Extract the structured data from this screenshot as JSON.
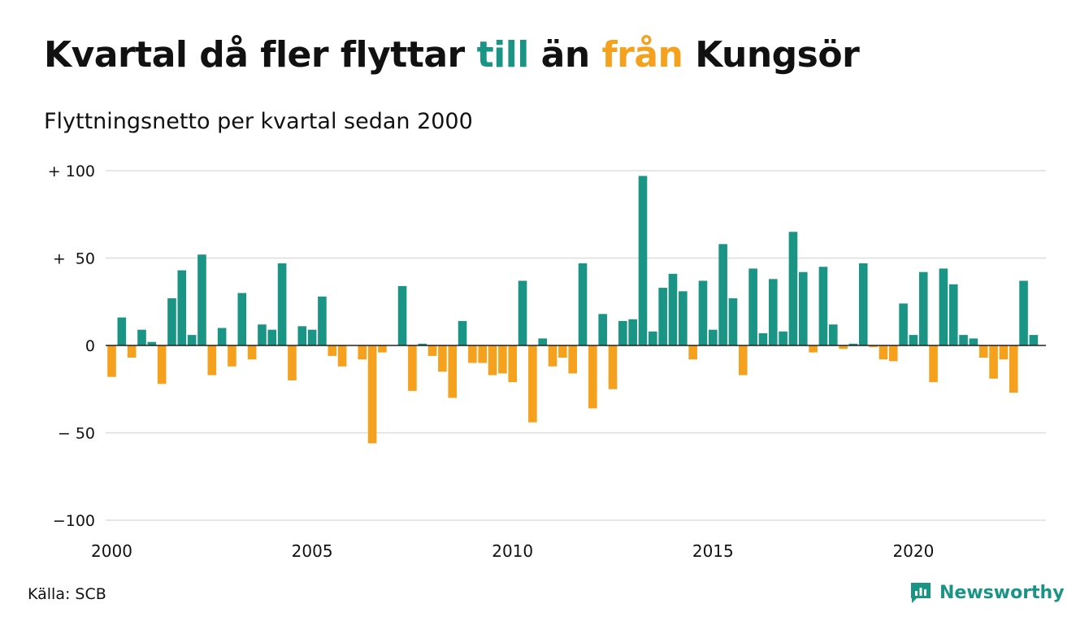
{
  "title": {
    "part1": "Kvartal då fler flyttar ",
    "word_in": "till",
    "part2": " än ",
    "word_out": "från",
    "part3": " Kungsör"
  },
  "subtitle": "Flyttningsnetto per kvartal sedan 2000",
  "source": "Källa: SCB",
  "brand": "Newsworthy",
  "colors": {
    "positive": "#1a9485",
    "negative": "#f5a11e",
    "text": "#111111",
    "grid": "#dddddd",
    "zero_line": "#222222"
  },
  "chart_data": {
    "type": "bar",
    "x_start": "2000 Q1",
    "x_unit": "quarter",
    "ylim": [
      -100,
      100
    ],
    "y_ticks": [
      {
        "value": 100,
        "label": "+ 100"
      },
      {
        "value": 50,
        "label": "+  50"
      },
      {
        "value": 0,
        "label": "0"
      },
      {
        "value": -50,
        "label": "− 50"
      },
      {
        "value": -100,
        "label": "−100"
      }
    ],
    "x_ticks": [
      {
        "label": "2000",
        "quarter_index": 0
      },
      {
        "label": "2005",
        "quarter_index": 20
      },
      {
        "label": "2010",
        "quarter_index": 40
      },
      {
        "label": "2015",
        "quarter_index": 60
      },
      {
        "label": "2020",
        "quarter_index": 80
      }
    ],
    "grid": true,
    "values": [
      -18,
      16,
      -7,
      9,
      2,
      -22,
      27,
      43,
      6,
      52,
      -17,
      10,
      -12,
      30,
      -8,
      12,
      9,
      47,
      -20,
      11,
      9,
      28,
      -6,
      -12,
      0,
      -8,
      -56,
      -4,
      0,
      34,
      -26,
      1,
      -6,
      -15,
      -30,
      14,
      -10,
      -10,
      -17,
      -16,
      -21,
      37,
      -44,
      4,
      -12,
      -7,
      -16,
      47,
      -36,
      18,
      -25,
      14,
      15,
      97,
      8,
      33,
      41,
      31,
      -8,
      37,
      9,
      58,
      27,
      -17,
      44,
      7,
      38,
      8,
      65,
      42,
      -4,
      45,
      12,
      -2,
      1,
      47,
      -1,
      -8,
      -9,
      24,
      6,
      42,
      -21,
      44,
      35,
      6,
      4,
      -7,
      -19,
      -8,
      -27,
      37,
      6
    ]
  }
}
